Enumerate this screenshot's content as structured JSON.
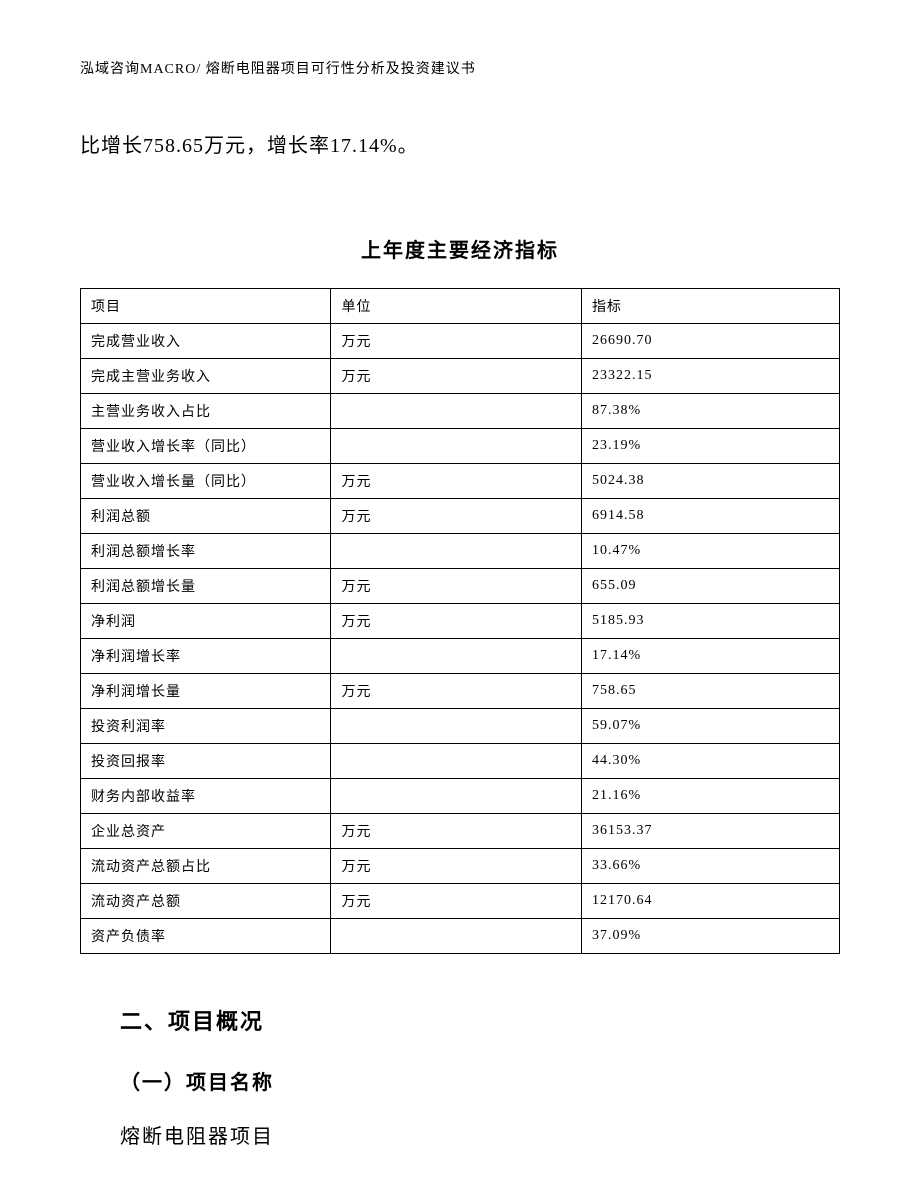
{
  "header": {
    "text": "泓域咨询MACRO/   熔断电阻器项目可行性分析及投资建议书"
  },
  "intro": {
    "text": "比增长758.65万元，增长率17.14%。"
  },
  "table": {
    "title": "上年度主要经济指标",
    "columns": [
      "项目",
      "单位",
      "指标"
    ],
    "rows": [
      {
        "item": "完成营业收入",
        "unit": "万元",
        "value": "26690.70"
      },
      {
        "item": "完成主营业务收入",
        "unit": "万元",
        "value": "23322.15"
      },
      {
        "item": "主营业务收入占比",
        "unit": "",
        "value": "87.38%"
      },
      {
        "item": "营业收入增长率（同比）",
        "unit": "",
        "value": "23.19%"
      },
      {
        "item": "营业收入增长量（同比）",
        "unit": "万元",
        "value": "5024.38"
      },
      {
        "item": "利润总额",
        "unit": "万元",
        "value": "6914.58"
      },
      {
        "item": "利润总额增长率",
        "unit": "",
        "value": "10.47%"
      },
      {
        "item": "利润总额增长量",
        "unit": "万元",
        "value": "655.09"
      },
      {
        "item": "净利润",
        "unit": "万元",
        "value": "5185.93"
      },
      {
        "item": "净利润增长率",
        "unit": "",
        "value": "17.14%"
      },
      {
        "item": "净利润增长量",
        "unit": "万元",
        "value": "758.65"
      },
      {
        "item": "投资利润率",
        "unit": "",
        "value": "59.07%"
      },
      {
        "item": "投资回报率",
        "unit": "",
        "value": "44.30%"
      },
      {
        "item": "财务内部收益率",
        "unit": "",
        "value": "21.16%"
      },
      {
        "item": "企业总资产",
        "unit": "万元",
        "value": "36153.37"
      },
      {
        "item": "流动资产总额占比",
        "unit": "万元",
        "value": "33.66%"
      },
      {
        "item": "流动资产总额",
        "unit": "万元",
        "value": "12170.64"
      },
      {
        "item": "资产负债率",
        "unit": "",
        "value": "37.09%"
      }
    ]
  },
  "section": {
    "heading": "二、项目概况",
    "subheading": "（一）项目名称",
    "body": "熔断电阻器项目"
  }
}
